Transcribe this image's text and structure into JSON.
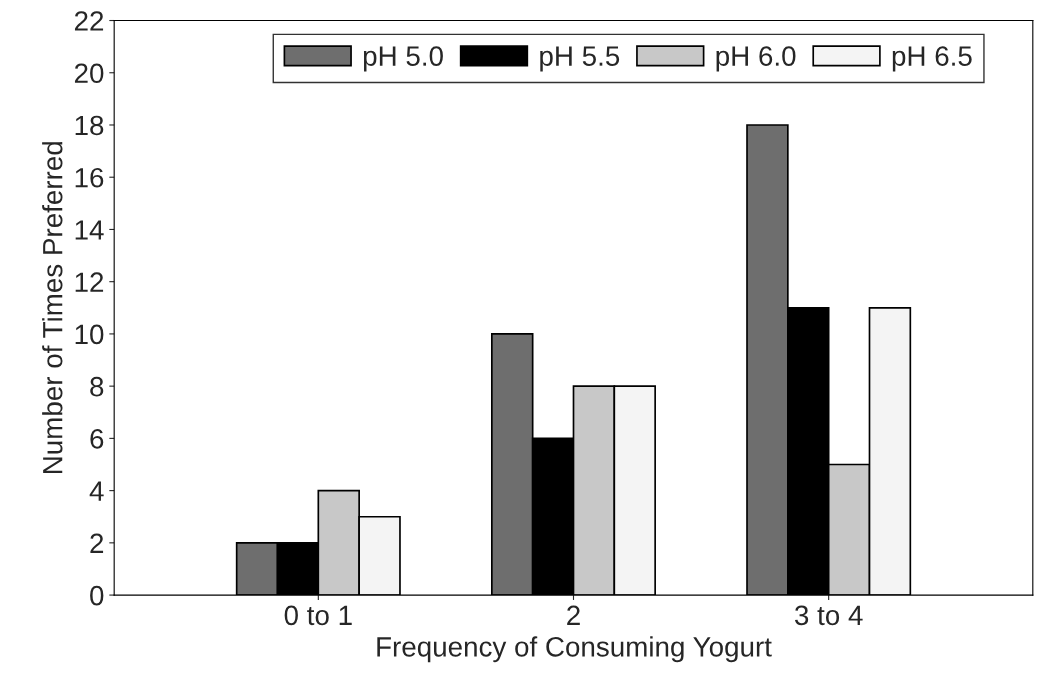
{
  "chart_data": {
    "type": "bar",
    "xlabel": "Frequency of Consuming Yogurt",
    "ylabel": "Number of Times Preferred",
    "categories": [
      "0 to 1",
      "2",
      "3 to 4"
    ],
    "series": [
      {
        "name": "pH 5.0",
        "color": "#6e6e6e",
        "values": [
          2,
          10,
          18
        ]
      },
      {
        "name": "pH 5.5",
        "color": "#000000",
        "values": [
          2,
          6,
          11
        ]
      },
      {
        "name": "pH 6.0",
        "color": "#c8c8c8",
        "values": [
          4,
          8,
          5
        ]
      },
      {
        "name": "pH 6.5",
        "color": "#f4f4f4",
        "values": [
          3,
          8,
          11
        ]
      }
    ],
    "ylim": [
      0,
      22
    ],
    "yticks": [
      0,
      2,
      4,
      6,
      8,
      10,
      12,
      14,
      16,
      18,
      20,
      22
    ],
    "grid": false,
    "legend": "top"
  }
}
